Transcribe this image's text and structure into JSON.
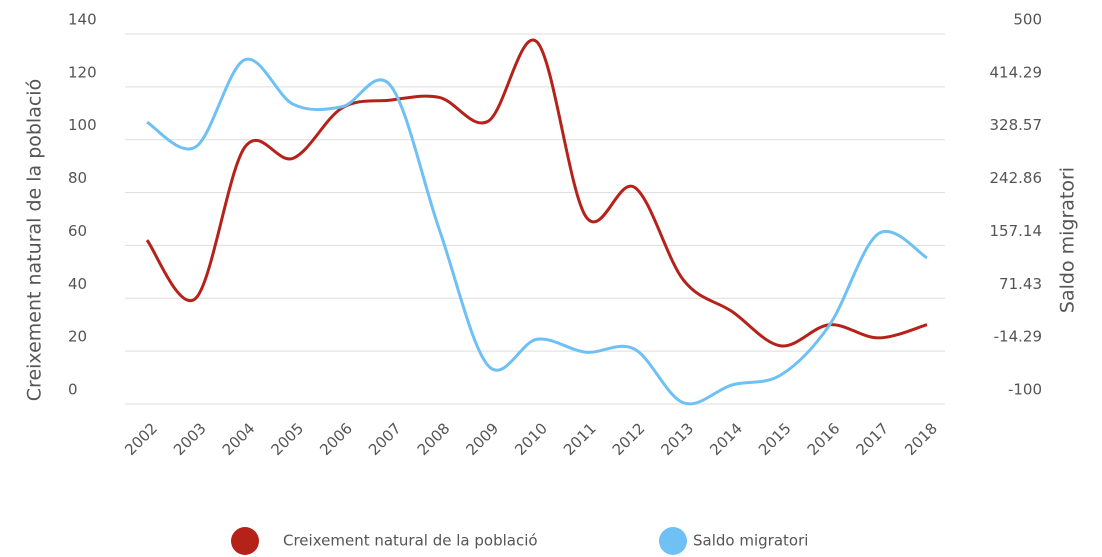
{
  "chart_data": {
    "type": "line",
    "y_label": "Creixement natural de la població",
    "y2_label": "Saldo migratori",
    "categories": [
      "2002",
      "2003",
      "2004",
      "2005",
      "2006",
      "2007",
      "2008",
      "2009",
      "2010",
      "2011",
      "2012",
      "2013",
      "2014",
      "2015",
      "2016",
      "2017",
      "2018"
    ],
    "series": [
      {
        "name": "Creixement natural de la població",
        "color": "#b5221a",
        "axis": "y",
        "values": [
          62,
          40,
          97,
          93,
          112,
          115,
          116,
          107,
          137,
          71,
          82,
          47,
          35,
          22,
          30,
          25,
          30
        ]
      },
      {
        "name": "Saldo migratori",
        "color": "#6ec0f5",
        "axis": "y2",
        "values": [
          357,
          317,
          458,
          386,
          382,
          416,
          182,
          -38,
          5,
          -16,
          -11,
          -98,
          -69,
          -53,
          28,
          176,
          137
        ]
      }
    ],
    "ylim": [
      0,
      140
    ],
    "yticks": [
      0,
      20,
      40,
      60,
      80,
      100,
      120,
      140
    ],
    "y2lim": [
      -100,
      500
    ],
    "y2ticks": [
      -100,
      -14.29,
      71.43,
      157.14,
      242.86,
      328.57,
      414.29,
      500
    ],
    "grid": true,
    "legend": "bottom"
  }
}
